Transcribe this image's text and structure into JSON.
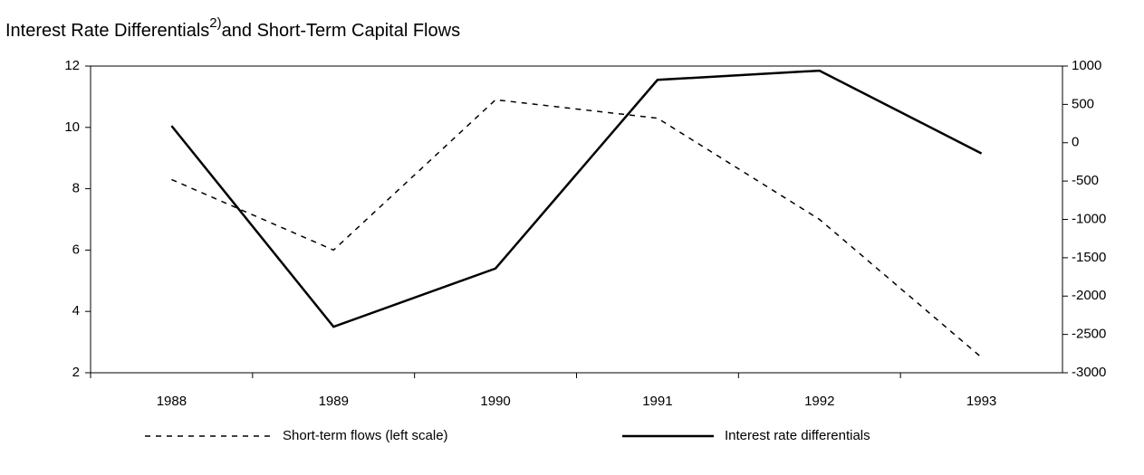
{
  "chart_data": {
    "type": "line",
    "title": "Interest Rate Differentials",
    "title_note": "2)",
    "title_rest": "and Short-Term Capital Flows",
    "categories": [
      "1988",
      "1989",
      "1990",
      "1991",
      "1992",
      "1993"
    ],
    "series": [
      {
        "name": "Short-term flows (left scale)",
        "color": "#000000",
        "dash": true,
        "values": [
          8.3,
          6.0,
          10.9,
          10.3,
          7.0,
          2.5
        ]
      },
      {
        "name": "Interest rate differentials",
        "color": "#000000",
        "dash": false,
        "axis": "y2",
        "values": [
          220,
          -2400,
          -1640,
          820,
          940,
          -140
        ]
      }
    ],
    "ylim": [
      2,
      12
    ],
    "yticks": [
      2,
      4,
      6,
      8,
      10,
      12
    ],
    "y2lim": [
      -3000,
      1000
    ],
    "y2ticks": [
      -3000,
      -2500,
      -2000,
      -1500,
      -1000,
      -500,
      0,
      500,
      1000
    ],
    "grid": false
  }
}
